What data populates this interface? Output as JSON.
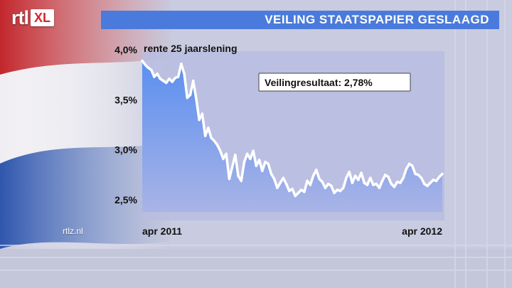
{
  "header": {
    "logo_rtl": "rtl",
    "logo_xl": "XL",
    "title": "VEILING STAATSPAPIER GESLAAGD"
  },
  "footer": {
    "site": "rtlz.nl"
  },
  "colors": {
    "title_bar": "#4a7bdc",
    "chart_fill_top": "#5b8ff0",
    "chart_fill_bottom": "#a9b4e6",
    "line": "#ffffff",
    "flag_red": "#c1272d",
    "flag_white": "#f2f2f2",
    "flag_blue": "#2a4ea6"
  },
  "chart_data": {
    "type": "area",
    "title": "",
    "series_label": "rente 25 jaarslening",
    "ylim": [
      2.38,
      4.0
    ],
    "yticks": [
      {
        "value": 4.0,
        "label": "4,0%"
      },
      {
        "value": 3.5,
        "label": "3,5%"
      },
      {
        "value": 3.0,
        "label": "3,0%"
      },
      {
        "value": 2.5,
        "label": "2,5%"
      }
    ],
    "xticks": [
      {
        "x": 0,
        "label": "apr 2011"
      },
      {
        "x": 100,
        "label": "apr 2012"
      }
    ],
    "annotation": "Veilingresultaat: 2,78%",
    "x": [
      0,
      1,
      2,
      3,
      4,
      5,
      6,
      7,
      8,
      9,
      10,
      11,
      12,
      13,
      14,
      15,
      16,
      17,
      18,
      19,
      20,
      21,
      22,
      23,
      24,
      25,
      26,
      27,
      28,
      29,
      30,
      31,
      32,
      33,
      34,
      35,
      36,
      37,
      38,
      39,
      40,
      41,
      42,
      43,
      44,
      45,
      46,
      47,
      48,
      49,
      50,
      51,
      52,
      53,
      54,
      55,
      56,
      57,
      58,
      59,
      60,
      61,
      62,
      63,
      64,
      65,
      66,
      67,
      68,
      69,
      70,
      71,
      72,
      73,
      74,
      75,
      76,
      77,
      78,
      79,
      80,
      81,
      82,
      83,
      84,
      85,
      86,
      87,
      88,
      89,
      90,
      91,
      92,
      93,
      94,
      95,
      96,
      97,
      98,
      99,
      100
    ],
    "values": [
      3.89,
      3.85,
      3.82,
      3.8,
      3.73,
      3.76,
      3.71,
      3.69,
      3.67,
      3.71,
      3.68,
      3.72,
      3.73,
      3.86,
      3.76,
      3.52,
      3.55,
      3.69,
      3.51,
      3.3,
      3.36,
      3.14,
      3.22,
      3.12,
      3.09,
      3.05,
      2.99,
      2.91,
      2.96,
      2.71,
      2.83,
      2.95,
      2.74,
      2.69,
      2.88,
      2.96,
      2.91,
      2.99,
      2.84,
      2.9,
      2.79,
      2.88,
      2.86,
      2.76,
      2.71,
      2.62,
      2.67,
      2.72,
      2.66,
      2.59,
      2.61,
      2.54,
      2.57,
      2.6,
      2.58,
      2.69,
      2.65,
      2.74,
      2.8,
      2.71,
      2.68,
      2.62,
      2.66,
      2.64,
      2.57,
      2.6,
      2.59,
      2.62,
      2.72,
      2.78,
      2.67,
      2.74,
      2.7,
      2.77,
      2.67,
      2.65,
      2.72,
      2.65,
      2.66,
      2.62,
      2.69,
      2.75,
      2.73,
      2.66,
      2.63,
      2.68,
      2.67,
      2.72,
      2.81,
      2.86,
      2.84,
      2.76,
      2.75,
      2.72,
      2.66,
      2.64,
      2.67,
      2.7,
      2.69,
      2.73,
      2.76
    ]
  }
}
